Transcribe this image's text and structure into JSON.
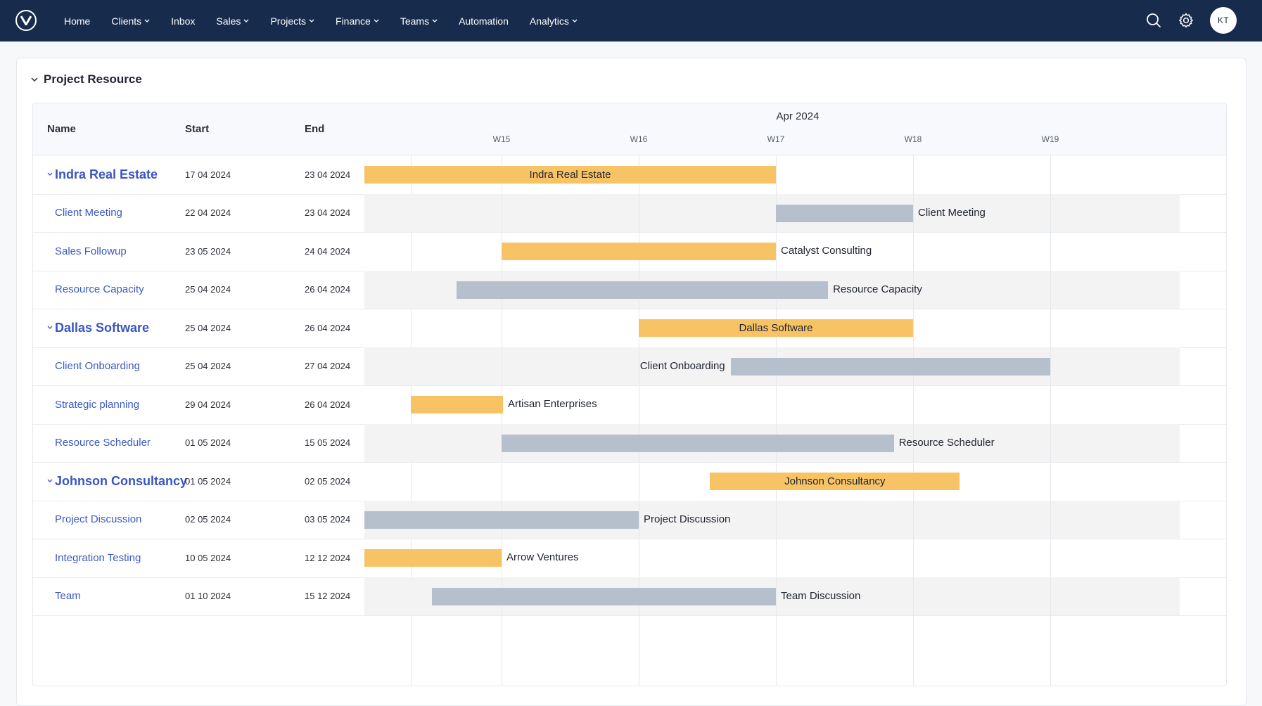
{
  "nav": {
    "items": [
      {
        "label": "Home",
        "dropdown": false
      },
      {
        "label": "Clients",
        "dropdown": true
      },
      {
        "label": "Inbox",
        "dropdown": false
      },
      {
        "label": "Sales",
        "dropdown": true
      },
      {
        "label": "Projects",
        "dropdown": true
      },
      {
        "label": "Finance",
        "dropdown": true
      },
      {
        "label": "Teams",
        "dropdown": true
      },
      {
        "label": "Automation",
        "dropdown": false
      },
      {
        "label": "Analytics",
        "dropdown": true
      }
    ],
    "avatar_initials": "KT",
    "icons": [
      "logo-icon",
      "search-icon",
      "gear-icon"
    ]
  },
  "panel": {
    "title": "Project Resource"
  },
  "table": {
    "columns": {
      "name": "Name",
      "start": "Start",
      "end": "End"
    },
    "timeline": {
      "month": "Apr 2024",
      "weeks": [
        "W15",
        "W16",
        "W17",
        "W18",
        "W19"
      ]
    },
    "rows": [
      {
        "name": "Indra Real Estate",
        "start": "17 04 2024",
        "end": "23 04 2024",
        "group": true,
        "bar_start_week": 0.0,
        "bar_end_week": 3.0,
        "bar_label": "Indra Real Estate",
        "label_inside": true,
        "color": "yellow"
      },
      {
        "name": "Client Meeting",
        "start": "22 04 2024",
        "end": "23 04 2024",
        "group": false,
        "bar_start_week": 3.0,
        "bar_end_week": 4.0,
        "bar_label": "Client Meeting",
        "label_inside": false,
        "color": "gray"
      },
      {
        "name": "Sales Followup",
        "start": "23 05 2024",
        "end": "24 04 2024",
        "group": false,
        "bar_start_week": 1.0,
        "bar_end_week": 3.0,
        "bar_label": "Catalyst Consulting",
        "label_inside": false,
        "color": "yellow"
      },
      {
        "name": "Resource Capacity",
        "start": "25 04 2024",
        "end": "26 04 2024",
        "group": false,
        "bar_start_week": 0.67,
        "bar_end_week": 3.38,
        "bar_label": "Resource Capacity",
        "label_inside": false,
        "color": "gray"
      },
      {
        "name": "Dallas Software",
        "start": "25 04 2024",
        "end": "26 04 2024",
        "group": true,
        "bar_start_week": 2.0,
        "bar_end_week": 4.0,
        "bar_label": "Dallas Software",
        "label_inside": true,
        "color": "yellow"
      },
      {
        "name": "Client Onboarding",
        "start": "25 04 2024",
        "end": "27 04 2024",
        "group": false,
        "bar_start_week": 2.67,
        "bar_end_week": 5.0,
        "bar_label": "Client Onboarding",
        "label_inside": false,
        "label_left": true,
        "color": "gray"
      },
      {
        "name": "Strategic planning",
        "start": "29 04 2024",
        "end": "26 04 2024",
        "group": false,
        "bar_start_week": 0.34,
        "bar_end_week": 1.01,
        "bar_label": "Artisan Enterprises",
        "label_inside": false,
        "color": "yellow"
      },
      {
        "name": "Resource Scheduler",
        "start": "01 05 2024",
        "end": "15 05 2024",
        "group": false,
        "bar_start_week": 1.0,
        "bar_end_week": 3.86,
        "bar_label": "Resource Scheduler",
        "label_inside": false,
        "color": "gray"
      },
      {
        "name": "Johnson Consultancy",
        "start": "01 05 2024",
        "end": "02 05 2024",
        "group": true,
        "bar_start_week": 2.52,
        "bar_end_week": 4.34,
        "bar_label": "Johnson Consultancy",
        "label_inside": true,
        "color": "yellow"
      },
      {
        "name": "Project Discussion",
        "start": "02 05 2024",
        "end": "03 05 2024",
        "group": false,
        "bar_start_week": 0.0,
        "bar_end_week": 2.0,
        "bar_label": "Project Discussion",
        "label_inside": false,
        "color": "gray"
      },
      {
        "name": "Integration Testing",
        "start": "10 05 2024",
        "end": "12 12 2024",
        "group": false,
        "bar_start_week": 0.0,
        "bar_end_week": 1.0,
        "bar_label": "Arrow Ventures",
        "label_inside": false,
        "color": "yellow"
      },
      {
        "name": "Team",
        "start": "01 10 2024",
        "end": "15 12 2024",
        "group": false,
        "bar_start_week": 0.49,
        "bar_end_week": 3.0,
        "bar_label": "Team Discussion",
        "label_inside": false,
        "color": "gray"
      }
    ]
  },
  "colors": {
    "nav_bg": "#172b4d",
    "parent_bar": "#f8c365",
    "task_bar_gray": "#b6c0cc",
    "link": "#3b5bc4"
  }
}
